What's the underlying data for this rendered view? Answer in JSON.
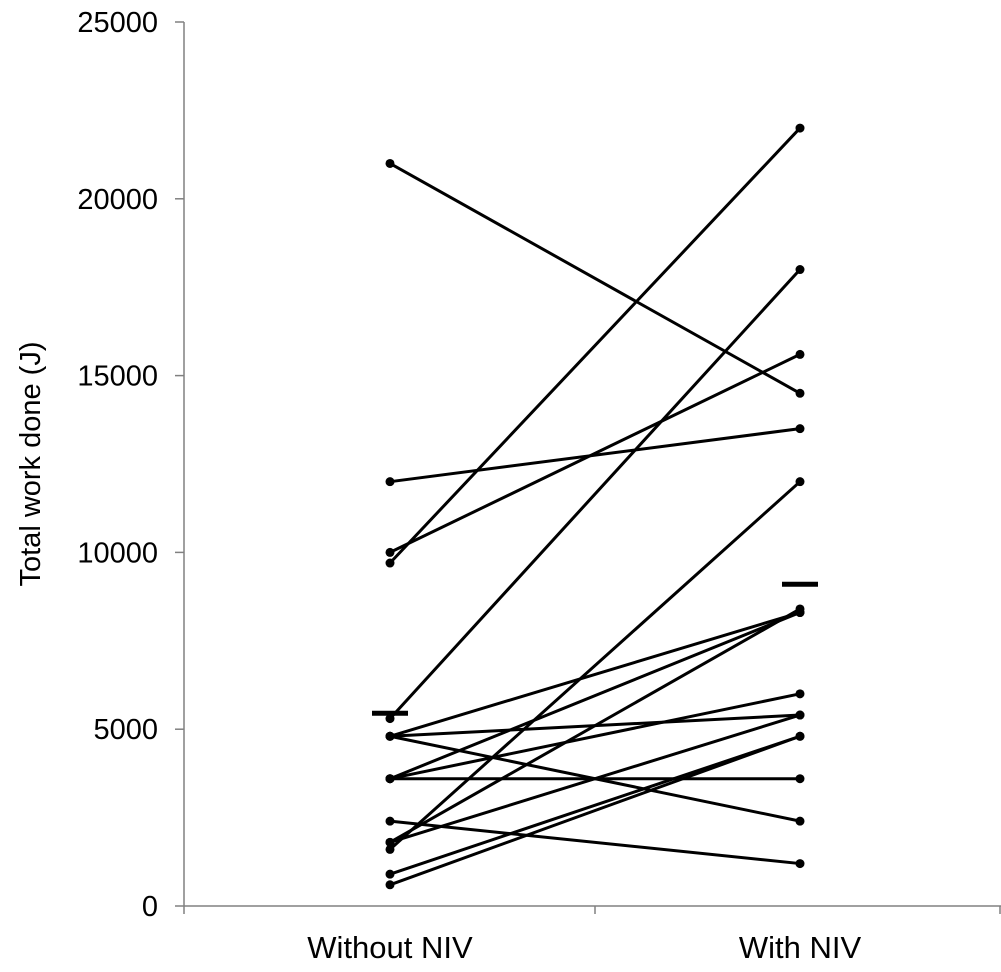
{
  "chart_data": {
    "type": "line",
    "title": "",
    "xlabel": "",
    "ylabel": "Total work done (J)",
    "categories": [
      "Without NIV",
      "With NIV"
    ],
    "ylim": [
      0,
      25000
    ],
    "yticks": [
      0,
      5000,
      10000,
      15000,
      20000,
      25000
    ],
    "grid": false,
    "legend": "none",
    "colors": {
      "line": "#000000",
      "point": "#000000",
      "axis": "#808080"
    },
    "pairs": [
      {
        "without": 21000,
        "with": 14500
      },
      {
        "without": 9700,
        "with": 22000
      },
      {
        "without": 10000,
        "with": 15600
      },
      {
        "without": 12000,
        "with": 13500
      },
      {
        "without": 5300,
        "with": 18000
      },
      {
        "without": 1600,
        "with": 12000
      },
      {
        "without": 1800,
        "with": 8400
      },
      {
        "without": 3600,
        "with": 8300
      },
      {
        "without": 4800,
        "with": 8300
      },
      {
        "without": 4800,
        "with": 5400
      },
      {
        "without": 4800,
        "with": 2400
      },
      {
        "without": 3600,
        "with": 3600
      },
      {
        "without": 3600,
        "with": 6000
      },
      {
        "without": 2400,
        "with": 1200
      },
      {
        "without": 1800,
        "with": 5400
      },
      {
        "without": 900,
        "with": 4800
      },
      {
        "without": 600,
        "with": 4800
      }
    ],
    "means": {
      "without": 5450,
      "with": 9100
    }
  }
}
